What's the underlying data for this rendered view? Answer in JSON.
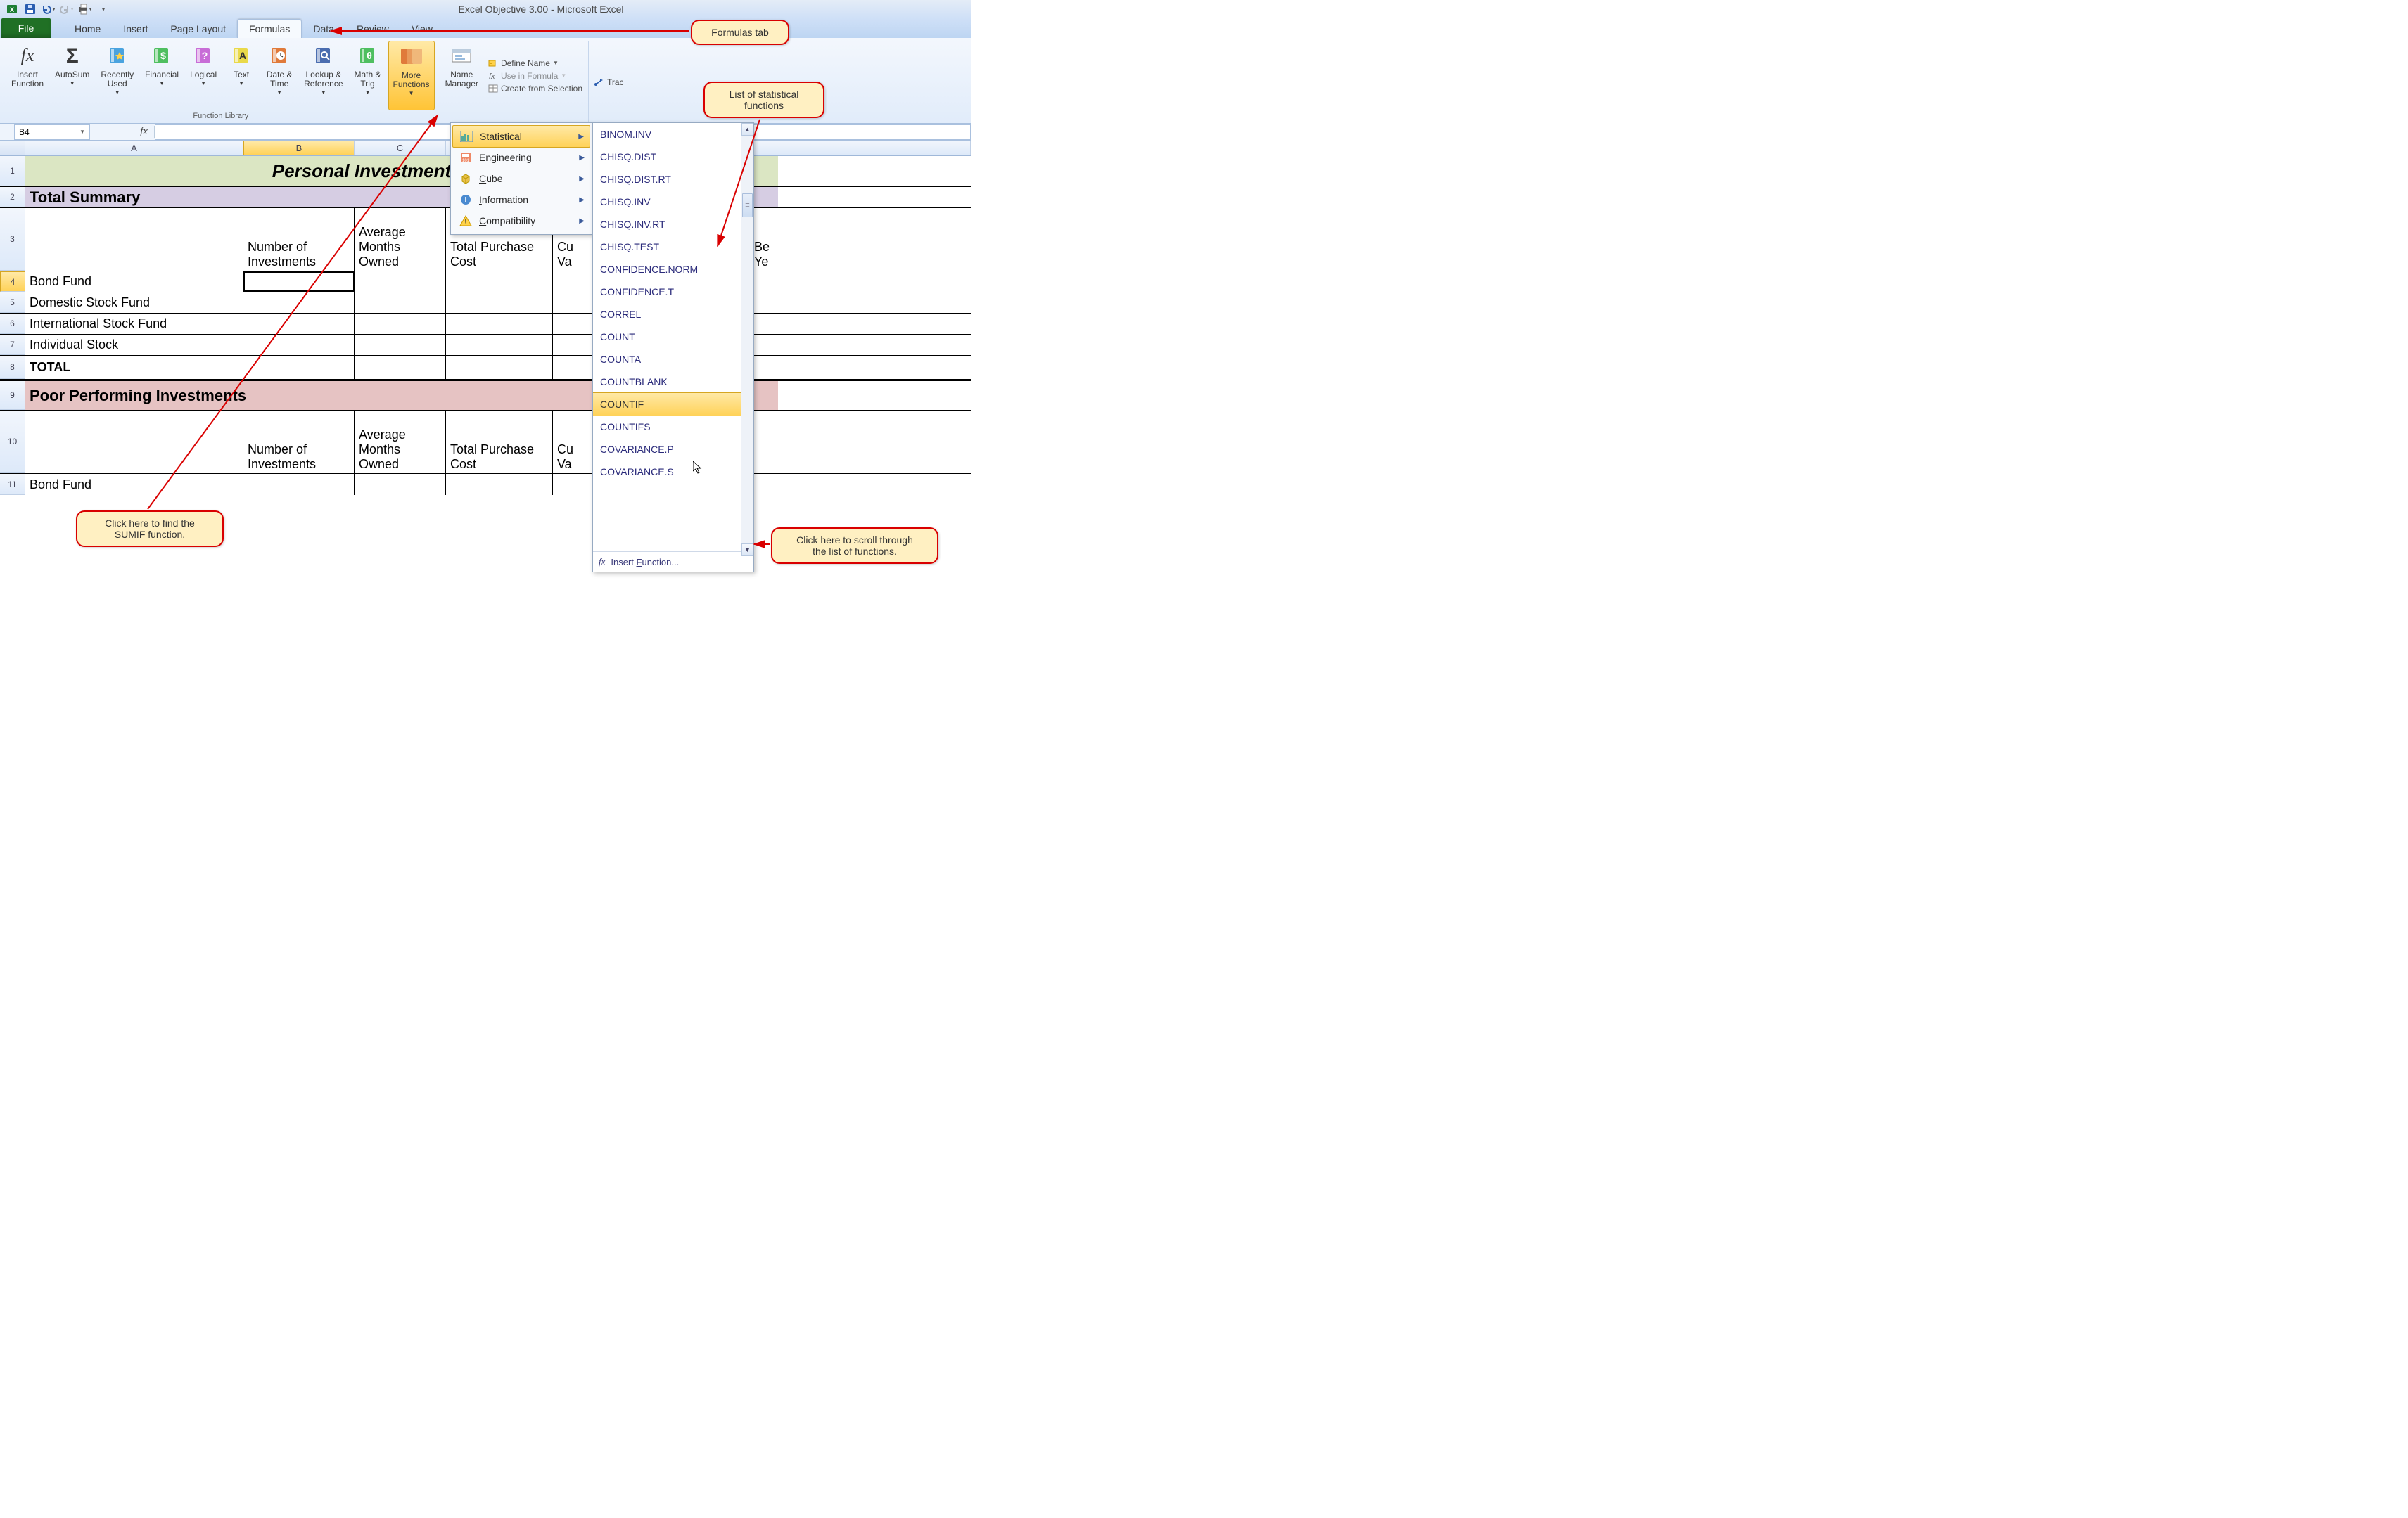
{
  "window": {
    "title": "Excel Objective 3.00 - Microsoft Excel"
  },
  "qat": {
    "save_tip": "Save",
    "undo_tip": "Undo",
    "redo_tip": "Redo",
    "print_tip": "Quick Print"
  },
  "tabs": {
    "file": "File",
    "home": "Home",
    "insert": "Insert",
    "page_layout": "Page Layout",
    "formulas": "Formulas",
    "data": "Data",
    "review": "Review",
    "view": "View"
  },
  "ribbon": {
    "insert_function": "Insert\nFunction",
    "autosum": "AutoSum",
    "recently_used": "Recently\nUsed",
    "financial": "Financial",
    "logical": "Logical",
    "text": "Text",
    "date_time": "Date &\nTime",
    "lookup_ref": "Lookup &\nReference",
    "math_trig": "Math &\nTrig",
    "more_functions": "More\nFunctions",
    "function_library": "Function Library",
    "name_manager": "Name\nManager",
    "define_name": "Define Name",
    "use_in_formula": "Use in Formula",
    "create_from_sel": "Create from Selection",
    "trace_precedents": "Trace Precedents"
  },
  "submenu": {
    "statistical": "Statistical",
    "engineering": "Engineering",
    "cube": "Cube",
    "information": "Information",
    "compatibility": "Compatibility"
  },
  "functions": [
    "BINOM.INV",
    "CHISQ.DIST",
    "CHISQ.DIST.RT",
    "CHISQ.INV",
    "CHISQ.INV.RT",
    "CHISQ.TEST",
    "CONFIDENCE.NORM",
    "CONFIDENCE.T",
    "CORREL",
    "COUNT",
    "COUNTA",
    "COUNTBLANK",
    "COUNTIF",
    "COUNTIFS",
    "COVARIANCE.P",
    "COVARIANCE.S"
  ],
  "func_highlight_index": 12,
  "insert_function_footer": "Insert Function...",
  "name_box": "B4",
  "columns": {
    "A": "A",
    "B": "B",
    "C": "C"
  },
  "sheet": {
    "title": "Personal Investment Portfolio",
    "total_summary": "Total Summary",
    "poor_performing": "Poor Performing Investments",
    "headers": {
      "num_investments": "Number of Investments",
      "avg_months": "Average Months Owned",
      "total_purchase": "Total Purchase Cost",
      "current_value_abbr": "Cu\nVa",
      "best_year_abbr": "Be\nYe"
    },
    "rows": {
      "r4": "Bond Fund",
      "r5": "Domestic Stock Fund",
      "r6": "International Stock Fund",
      "r7": "Individual Stock",
      "r8": "TOTAL",
      "r11": "Bond Fund"
    },
    "row_heights": {
      "r1": 44,
      "r2": 30,
      "r3": 90,
      "r4_7": 30,
      "r8": 36,
      "r9": 42,
      "r10": 90,
      "r11": 30
    },
    "colors": {
      "title_bg": "#dbe6c3",
      "summary_bg": "#d6cde3",
      "poor_bg": "#e6c3c3",
      "col_header_active": "#ffd966"
    }
  },
  "callouts": {
    "formulas_tab": "Formulas tab",
    "stat_list": "List of statistical\nfunctions",
    "sumif": "Click here to find the\nSUMIF function.",
    "scroll": "Click here to scroll through\nthe list of functions."
  }
}
